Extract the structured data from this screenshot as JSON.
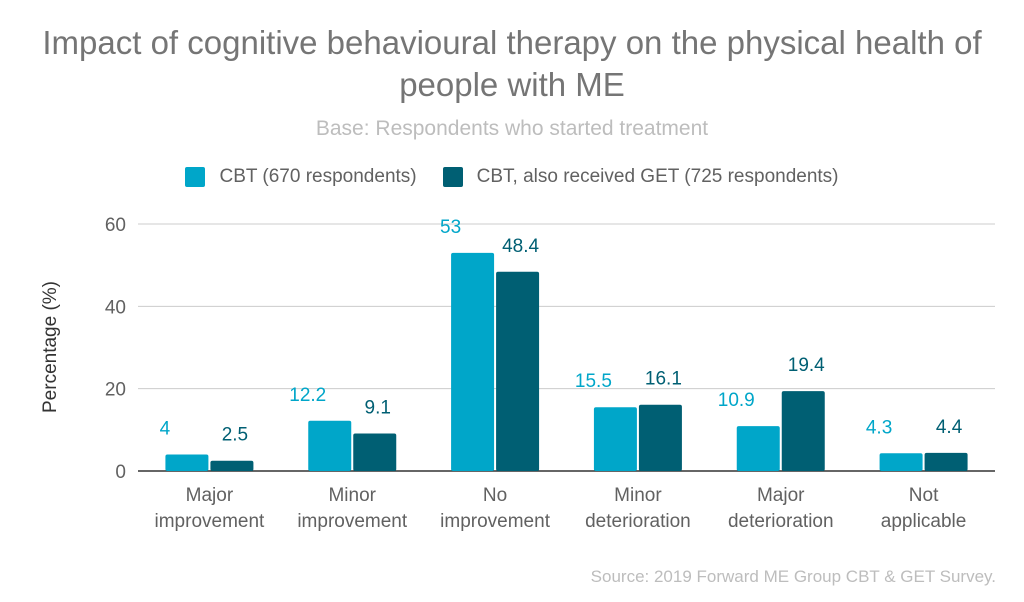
{
  "chart_data": {
    "type": "bar",
    "title": "Impact of cognitive behavioural therapy on the physical health of people with ME",
    "subtitle": "Base: Respondents who started treatment",
    "ylabel": "Percentage (%)",
    "xlabel": "",
    "ylim": [
      0,
      60
    ],
    "yticks": [
      0,
      20,
      40,
      60
    ],
    "grid": true,
    "legend_position": "top",
    "categories": [
      [
        "Major",
        "improvement"
      ],
      [
        "Minor",
        "improvement"
      ],
      [
        "No",
        "improvement"
      ],
      [
        "Minor",
        "deterioration"
      ],
      [
        "Major",
        "deterioration"
      ],
      [
        "Not",
        "applicable"
      ]
    ],
    "series": [
      {
        "name": "CBT (670 respondents)",
        "color": "#00a6c9",
        "values": [
          4,
          12.2,
          53,
          15.5,
          10.9,
          4.3
        ]
      },
      {
        "name": "CBT, also received GET (725 respondents)",
        "color": "#005f73",
        "values": [
          2.5,
          9.1,
          48.4,
          16.1,
          19.4,
          4.4
        ]
      }
    ],
    "source": "Source: 2019 Forward ME Group CBT & GET Survey."
  }
}
